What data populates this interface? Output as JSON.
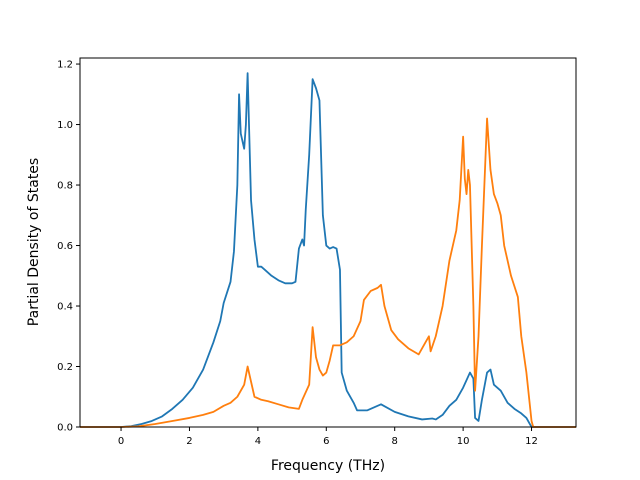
{
  "chart_data": {
    "type": "line",
    "title": "",
    "xlabel": "Frequency (THz)",
    "ylabel": "Partial Density of States",
    "xlim": [
      -1.2,
      13.3
    ],
    "ylim": [
      0.0,
      1.22
    ],
    "xticks": [
      0,
      2,
      4,
      6,
      8,
      10,
      12
    ],
    "yticks": [
      0.0,
      0.2,
      0.4,
      0.6,
      0.8,
      1.0,
      1.2
    ],
    "xtick_labels": [
      "0",
      "2",
      "4",
      "6",
      "8",
      "10",
      "12"
    ],
    "ytick_labels": [
      "0.0",
      "0.2",
      "0.4",
      "0.6",
      "0.8",
      "1.0",
      "1.2"
    ],
    "grid": false,
    "legend": false,
    "series": [
      {
        "color": "#1f77b4",
        "points": [
          [
            -1.2,
            0.0
          ],
          [
            0.0,
            0.0
          ],
          [
            0.3,
            0.003
          ],
          [
            0.6,
            0.01
          ],
          [
            0.9,
            0.02
          ],
          [
            1.2,
            0.035
          ],
          [
            1.5,
            0.06
          ],
          [
            1.8,
            0.09
          ],
          [
            2.1,
            0.13
          ],
          [
            2.4,
            0.19
          ],
          [
            2.7,
            0.28
          ],
          [
            2.9,
            0.35
          ],
          [
            3.0,
            0.41
          ],
          [
            3.2,
            0.48
          ],
          [
            3.3,
            0.58
          ],
          [
            3.4,
            0.8
          ],
          [
            3.45,
            1.1
          ],
          [
            3.5,
            0.97
          ],
          [
            3.6,
            0.92
          ],
          [
            3.65,
            1.0
          ],
          [
            3.7,
            1.17
          ],
          [
            3.8,
            0.75
          ],
          [
            3.9,
            0.62
          ],
          [
            4.0,
            0.53
          ],
          [
            4.1,
            0.53
          ],
          [
            4.2,
            0.52
          ],
          [
            4.4,
            0.5
          ],
          [
            4.6,
            0.485
          ],
          [
            4.8,
            0.475
          ],
          [
            5.0,
            0.475
          ],
          [
            5.1,
            0.48
          ],
          [
            5.2,
            0.59
          ],
          [
            5.3,
            0.62
          ],
          [
            5.35,
            0.6
          ],
          [
            5.4,
            0.72
          ],
          [
            5.5,
            0.9
          ],
          [
            5.6,
            1.15
          ],
          [
            5.7,
            1.12
          ],
          [
            5.8,
            1.08
          ],
          [
            5.9,
            0.7
          ],
          [
            6.0,
            0.6
          ],
          [
            6.1,
            0.59
          ],
          [
            6.2,
            0.595
          ],
          [
            6.3,
            0.59
          ],
          [
            6.4,
            0.52
          ],
          [
            6.45,
            0.18
          ],
          [
            6.6,
            0.12
          ],
          [
            6.8,
            0.08
          ],
          [
            6.9,
            0.055
          ],
          [
            7.2,
            0.055
          ],
          [
            7.6,
            0.075
          ],
          [
            8.0,
            0.05
          ],
          [
            8.4,
            0.035
          ],
          [
            8.8,
            0.025
          ],
          [
            9.1,
            0.028
          ],
          [
            9.2,
            0.025
          ],
          [
            9.4,
            0.04
          ],
          [
            9.6,
            0.07
          ],
          [
            9.8,
            0.09
          ],
          [
            10.0,
            0.13
          ],
          [
            10.2,
            0.18
          ],
          [
            10.3,
            0.16
          ],
          [
            10.35,
            0.03
          ],
          [
            10.45,
            0.02
          ],
          [
            10.55,
            0.09
          ],
          [
            10.7,
            0.18
          ],
          [
            10.8,
            0.19
          ],
          [
            10.9,
            0.14
          ],
          [
            11.1,
            0.12
          ],
          [
            11.3,
            0.08
          ],
          [
            11.5,
            0.06
          ],
          [
            11.7,
            0.045
          ],
          [
            11.85,
            0.03
          ],
          [
            12.0,
            0.0
          ],
          [
            13.3,
            0.0
          ]
        ]
      },
      {
        "color": "#ff7f0e",
        "points": [
          [
            -1.2,
            0.0
          ],
          [
            0.0,
            0.0
          ],
          [
            0.5,
            0.002
          ],
          [
            1.0,
            0.01
          ],
          [
            1.5,
            0.02
          ],
          [
            2.0,
            0.03
          ],
          [
            2.4,
            0.04
          ],
          [
            2.7,
            0.05
          ],
          [
            3.0,
            0.07
          ],
          [
            3.2,
            0.08
          ],
          [
            3.4,
            0.1
          ],
          [
            3.6,
            0.14
          ],
          [
            3.7,
            0.2
          ],
          [
            3.8,
            0.15
          ],
          [
            3.9,
            0.1
          ],
          [
            4.1,
            0.09
          ],
          [
            4.3,
            0.085
          ],
          [
            4.6,
            0.075
          ],
          [
            4.9,
            0.065
          ],
          [
            5.2,
            0.06
          ],
          [
            5.3,
            0.09
          ],
          [
            5.5,
            0.14
          ],
          [
            5.6,
            0.33
          ],
          [
            5.7,
            0.23
          ],
          [
            5.8,
            0.19
          ],
          [
            5.9,
            0.17
          ],
          [
            6.0,
            0.18
          ],
          [
            6.1,
            0.22
          ],
          [
            6.2,
            0.27
          ],
          [
            6.4,
            0.27
          ],
          [
            6.6,
            0.28
          ],
          [
            6.8,
            0.3
          ],
          [
            7.0,
            0.35
          ],
          [
            7.1,
            0.42
          ],
          [
            7.3,
            0.45
          ],
          [
            7.5,
            0.46
          ],
          [
            7.6,
            0.47
          ],
          [
            7.7,
            0.4
          ],
          [
            7.9,
            0.32
          ],
          [
            8.1,
            0.29
          ],
          [
            8.4,
            0.26
          ],
          [
            8.7,
            0.24
          ],
          [
            8.9,
            0.28
          ],
          [
            9.0,
            0.3
          ],
          [
            9.05,
            0.25
          ],
          [
            9.2,
            0.3
          ],
          [
            9.4,
            0.4
          ],
          [
            9.6,
            0.55
          ],
          [
            9.8,
            0.65
          ],
          [
            9.9,
            0.75
          ],
          [
            10.0,
            0.96
          ],
          [
            10.05,
            0.82
          ],
          [
            10.1,
            0.77
          ],
          [
            10.15,
            0.85
          ],
          [
            10.2,
            0.8
          ],
          [
            10.3,
            0.4
          ],
          [
            10.35,
            0.12
          ],
          [
            10.45,
            0.3
          ],
          [
            10.55,
            0.6
          ],
          [
            10.7,
            1.02
          ],
          [
            10.8,
            0.85
          ],
          [
            10.9,
            0.77
          ],
          [
            11.0,
            0.74
          ],
          [
            11.1,
            0.7
          ],
          [
            11.2,
            0.6
          ],
          [
            11.4,
            0.5
          ],
          [
            11.6,
            0.43
          ],
          [
            11.7,
            0.3
          ],
          [
            11.85,
            0.18
          ],
          [
            12.0,
            0.02
          ],
          [
            12.05,
            0.0
          ],
          [
            13.3,
            0.0
          ]
        ]
      }
    ]
  }
}
